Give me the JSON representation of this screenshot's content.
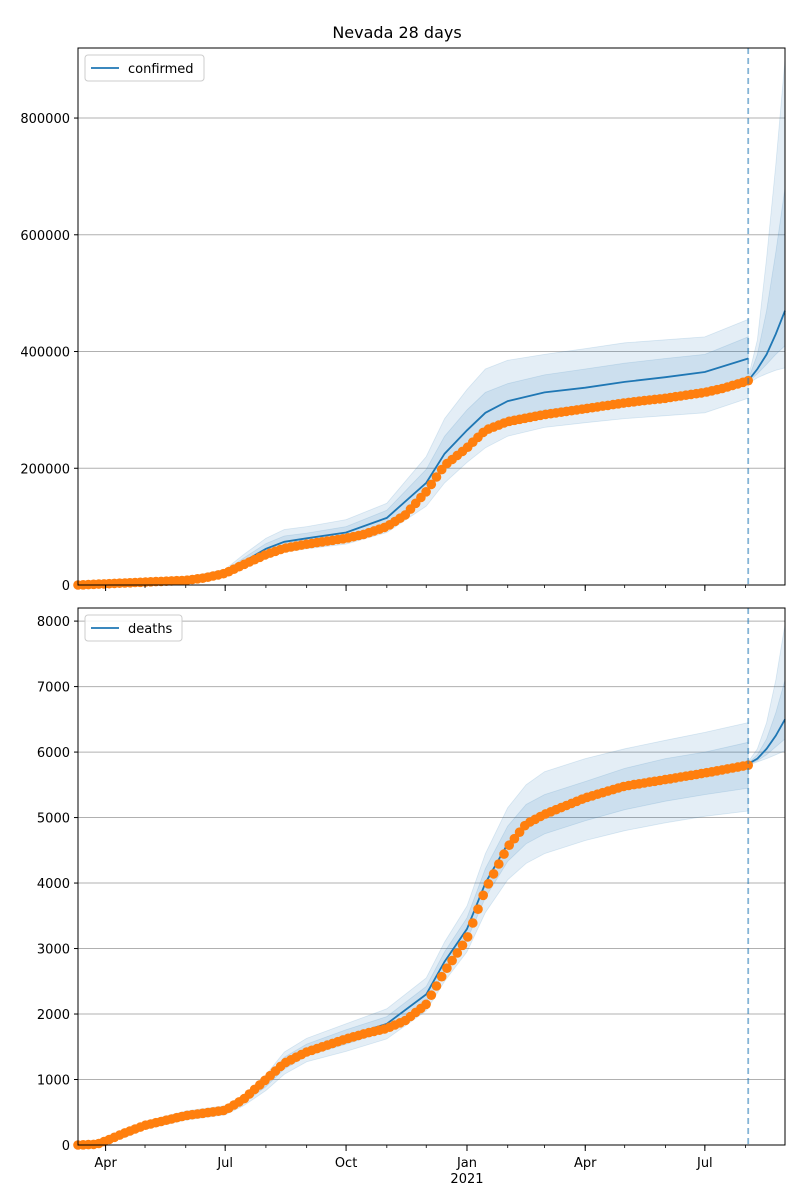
{
  "title": "Nevada 28 days",
  "colors": {
    "model": "#1f77b4",
    "observed": "#ff7f0e",
    "band": "#1f77b4",
    "grid": "#b0b0b0",
    "axis": "#000000"
  },
  "chart_data": [
    {
      "type": "line",
      "legend": {
        "label": "confirmed",
        "position": "top-left"
      },
      "grid": "horizontal",
      "xlim": [
        "2020-03-11",
        "2021-08-31"
      ],
      "ylim": [
        0,
        920000
      ],
      "yticks": [
        0,
        200000,
        400000,
        600000,
        800000
      ],
      "ytick_labels": [
        "0",
        "200000",
        "400000",
        "600000",
        "800000"
      ],
      "xticks": [
        "2020-04-01",
        "2020-07-01",
        "2020-10-01",
        "2021-01-01",
        "2021-04-01",
        "2021-07-01"
      ],
      "xtick_labels": [],
      "forecast_start": "2021-08-03",
      "fit": {
        "x": [
          "2020-03-11",
          "2020-04-01",
          "2020-05-01",
          "2020-06-01",
          "2020-07-01",
          "2020-07-15",
          "2020-08-01",
          "2020-08-15",
          "2020-09-01",
          "2020-10-01",
          "2020-11-01",
          "2020-12-01",
          "2020-12-15",
          "2021-01-01",
          "2021-01-15",
          "2021-02-01",
          "2021-03-01",
          "2021-04-01",
          "2021-05-01",
          "2021-06-01",
          "2021-07-01",
          "2021-08-03"
        ],
        "y": [
          0,
          3000,
          5000,
          9000,
          20000,
          40000,
          62000,
          74000,
          80000,
          90000,
          115000,
          175000,
          225000,
          265000,
          295000,
          315000,
          330000,
          338000,
          348000,
          356000,
          365000,
          388000
        ]
      },
      "forecast": {
        "x": [
          "2021-08-03",
          "2021-08-10",
          "2021-08-17",
          "2021-08-24",
          "2021-08-31"
        ],
        "y": [
          350000,
          370000,
          395000,
          430000,
          470000
        ]
      },
      "bands": [
        {
          "x": [
            "2020-03-11",
            "2020-04-01",
            "2020-05-01",
            "2020-06-01",
            "2020-07-01",
            "2020-07-15",
            "2020-08-01",
            "2020-08-15",
            "2020-09-01",
            "2020-10-01",
            "2020-11-01",
            "2020-12-01",
            "2020-12-15",
            "2021-01-01",
            "2021-01-15",
            "2021-02-01",
            "2021-03-01",
            "2021-04-01",
            "2021-05-01",
            "2021-06-01",
            "2021-07-01",
            "2021-08-03"
          ],
          "lower": [
            0,
            2000,
            3000,
            6000,
            14000,
            28000,
            45000,
            56000,
            62000,
            70000,
            90000,
            135000,
            175000,
            210000,
            235000,
            255000,
            270000,
            278000,
            285000,
            290000,
            295000,
            320000
          ],
          "upper": [
            0,
            4000,
            8000,
            13000,
            27000,
            52000,
            80000,
            95000,
            100000,
            112000,
            140000,
            220000,
            285000,
            335000,
            370000,
            385000,
            395000,
            405000,
            415000,
            420000,
            425000,
            455000
          ]
        },
        {
          "x": [
            "2020-03-11",
            "2020-04-01",
            "2020-05-01",
            "2020-06-01",
            "2020-07-01",
            "2020-07-15",
            "2020-08-01",
            "2020-08-15",
            "2020-09-01",
            "2020-10-01",
            "2020-11-01",
            "2020-12-01",
            "2020-12-15",
            "2021-01-01",
            "2021-01-15",
            "2021-02-01",
            "2021-03-01",
            "2021-04-01",
            "2021-05-01",
            "2021-06-01",
            "2021-07-01",
            "2021-08-03"
          ],
          "lower": [
            0,
            2500,
            4000,
            7500,
            17000,
            34000,
            53000,
            65000,
            71000,
            80000,
            102000,
            155000,
            200000,
            238000,
            265000,
            285000,
            300000,
            308000,
            316000,
            323000,
            330000,
            355000
          ],
          "upper": [
            0,
            3500,
            6500,
            11000,
            24000,
            46000,
            71000,
            84000,
            89000,
            100000,
            128000,
            198000,
            255000,
            300000,
            330000,
            345000,
            360000,
            370000,
            380000,
            388000,
            395000,
            425000
          ]
        },
        {
          "x": [
            "2021-08-03",
            "2021-08-10",
            "2021-08-17",
            "2021-08-24",
            "2021-08-31"
          ],
          "lower": [
            345000,
            355000,
            362000,
            368000,
            372000
          ],
          "upper": [
            355000,
            420000,
            560000,
            720000,
            900000
          ]
        },
        {
          "x": [
            "2021-08-03",
            "2021-08-10",
            "2021-08-17",
            "2021-08-24",
            "2021-08-31"
          ],
          "lower": [
            348000,
            362000,
            378000,
            395000,
            410000
          ],
          "upper": [
            352000,
            395000,
            470000,
            570000,
            680000
          ]
        }
      ],
      "observed": {
        "x": [
          "2020-03-11",
          "2020-04-01",
          "2020-05-01",
          "2020-06-01",
          "2020-06-15",
          "2020-07-01",
          "2020-07-15",
          "2020-08-01",
          "2020-08-15",
          "2020-09-01",
          "2020-10-01",
          "2020-10-15",
          "2020-11-01",
          "2020-11-15",
          "2020-12-01",
          "2020-12-15",
          "2021-01-01",
          "2021-01-15",
          "2021-02-01",
          "2021-03-01",
          "2021-04-01",
          "2021-05-01",
          "2021-06-01",
          "2021-07-01",
          "2021-07-15",
          "2021-08-03"
        ],
        "y": [
          0,
          2000,
          5000,
          8000,
          12000,
          20000,
          35000,
          52000,
          63000,
          70000,
          80000,
          87000,
          100000,
          120000,
          160000,
          205000,
          235000,
          265000,
          280000,
          292000,
          302000,
          312000,
          320000,
          330000,
          337000,
          350000
        ]
      }
    },
    {
      "type": "line",
      "legend": {
        "label": "deaths",
        "position": "top-left"
      },
      "grid": "horizontal",
      "xlim": [
        "2020-03-11",
        "2021-08-31"
      ],
      "ylim": [
        0,
        8200
      ],
      "yticks": [
        0,
        1000,
        2000,
        3000,
        4000,
        5000,
        6000,
        7000,
        8000
      ],
      "ytick_labels": [
        "0",
        "1000",
        "2000",
        "3000",
        "4000",
        "5000",
        "6000",
        "7000",
        "8000"
      ],
      "xticks": [
        "2020-04-01",
        "2020-07-01",
        "2020-10-01",
        "2021-01-01",
        "2021-04-01",
        "2021-07-01"
      ],
      "xtick_labels": [
        "Apr",
        "Jul",
        "Oct",
        "Jan",
        "Apr",
        "Jul"
      ],
      "year_label": {
        "at": "2021-01-01",
        "text": "2021"
      },
      "forecast_start": "2021-08-03",
      "fit": {
        "x": [
          "2020-03-11",
          "2020-03-25",
          "2020-04-15",
          "2020-05-01",
          "2020-06-01",
          "2020-07-01",
          "2020-07-15",
          "2020-08-01",
          "2020-08-15",
          "2020-09-01",
          "2020-10-01",
          "2020-11-01",
          "2020-12-01",
          "2020-12-15",
          "2021-01-01",
          "2021-01-15",
          "2021-02-01",
          "2021-02-15",
          "2021-03-01",
          "2021-04-01",
          "2021-05-01",
          "2021-06-01",
          "2021-07-01",
          "2021-08-03"
        ],
        "y": [
          0,
          20,
          150,
          300,
          450,
          530,
          680,
          950,
          1250,
          1450,
          1650,
          1850,
          2300,
          2800,
          3300,
          4000,
          4600,
          4900,
          5050,
          5250,
          5450,
          5580,
          5680,
          5800
        ]
      },
      "forecast": {
        "x": [
          "2021-08-03",
          "2021-08-10",
          "2021-08-17",
          "2021-08-24",
          "2021-08-31"
        ],
        "y": [
          5820,
          5900,
          6050,
          6250,
          6500
        ]
      },
      "bands": [
        {
          "x": [
            "2020-03-11",
            "2020-03-25",
            "2020-04-15",
            "2020-05-01",
            "2020-06-01",
            "2020-07-01",
            "2020-07-15",
            "2020-08-01",
            "2020-08-15",
            "2020-09-01",
            "2020-10-01",
            "2020-11-01",
            "2020-12-01",
            "2020-12-15",
            "2021-01-01",
            "2021-01-15",
            "2021-02-01",
            "2021-02-15",
            "2021-03-01",
            "2021-04-01",
            "2021-05-01",
            "2021-06-01",
            "2021-07-01",
            "2021-08-03"
          ],
          "lower": [
            0,
            10,
            110,
            240,
            380,
            460,
            600,
            830,
            1080,
            1270,
            1430,
            1620,
            2050,
            2500,
            2950,
            3550,
            4050,
            4300,
            4450,
            4650,
            4800,
            4920,
            5020,
            5100
          ],
          "upper": [
            0,
            30,
            190,
            360,
            520,
            600,
            760,
            1070,
            1420,
            1630,
            1850,
            2080,
            2550,
            3100,
            3650,
            4450,
            5150,
            5500,
            5700,
            5900,
            6050,
            6180,
            6300,
            6450
          ]
        },
        {
          "x": [
            "2020-03-11",
            "2020-03-25",
            "2020-04-15",
            "2020-05-01",
            "2020-06-01",
            "2020-07-01",
            "2020-07-15",
            "2020-08-01",
            "2020-08-15",
            "2020-09-01",
            "2020-10-01",
            "2020-11-01",
            "2020-12-01",
            "2020-12-15",
            "2021-01-01",
            "2021-01-15",
            "2021-02-01",
            "2021-02-15",
            "2021-03-01",
            "2021-04-01",
            "2021-05-01",
            "2021-06-01",
            "2021-07-01",
            "2021-08-03"
          ],
          "lower": [
            0,
            15,
            130,
            270,
            415,
            495,
            640,
            890,
            1160,
            1360,
            1540,
            1740,
            2180,
            2650,
            3130,
            3780,
            4330,
            4600,
            4750,
            4950,
            5120,
            5250,
            5350,
            5450
          ],
          "upper": [
            0,
            25,
            170,
            330,
            485,
            565,
            720,
            1010,
            1340,
            1540,
            1760,
            1960,
            2420,
            2950,
            3470,
            4220,
            4870,
            5200,
            5350,
            5550,
            5750,
            5900,
            6000,
            6150
          ]
        },
        {
          "x": [
            "2021-08-03",
            "2021-08-10",
            "2021-08-17",
            "2021-08-24",
            "2021-08-31"
          ],
          "lower": [
            5800,
            5850,
            5900,
            5960,
            6020
          ],
          "upper": [
            5850,
            6050,
            6450,
            7100,
            7950
          ]
        },
        {
          "x": [
            "2021-08-03",
            "2021-08-10",
            "2021-08-17",
            "2021-08-24",
            "2021-08-31"
          ],
          "lower": [
            5810,
            5870,
            5960,
            6080,
            6200
          ],
          "upper": [
            5830,
            5960,
            6200,
            6600,
            7100
          ]
        }
      ],
      "observed": {
        "x": [
          "2020-03-11",
          "2020-03-25",
          "2020-04-01",
          "2020-04-15",
          "2020-05-01",
          "2020-06-01",
          "2020-07-01",
          "2020-07-15",
          "2020-08-01",
          "2020-08-15",
          "2020-09-01",
          "2020-10-01",
          "2020-10-15",
          "2020-11-01",
          "2020-11-15",
          "2020-12-01",
          "2020-12-15",
          "2021-01-01",
          "2021-01-15",
          "2021-02-01",
          "2021-02-15",
          "2021-03-01",
          "2021-04-01",
          "2021-05-01",
          "2021-06-01",
          "2021-07-01",
          "2021-08-03"
        ],
        "y": [
          0,
          10,
          60,
          180,
          300,
          450,
          530,
          700,
          1000,
          1250,
          1420,
          1620,
          1700,
          1780,
          1900,
          2150,
          2650,
          3150,
          3900,
          4550,
          4900,
          5050,
          5300,
          5480,
          5580,
          5680,
          5800
        ]
      }
    }
  ]
}
